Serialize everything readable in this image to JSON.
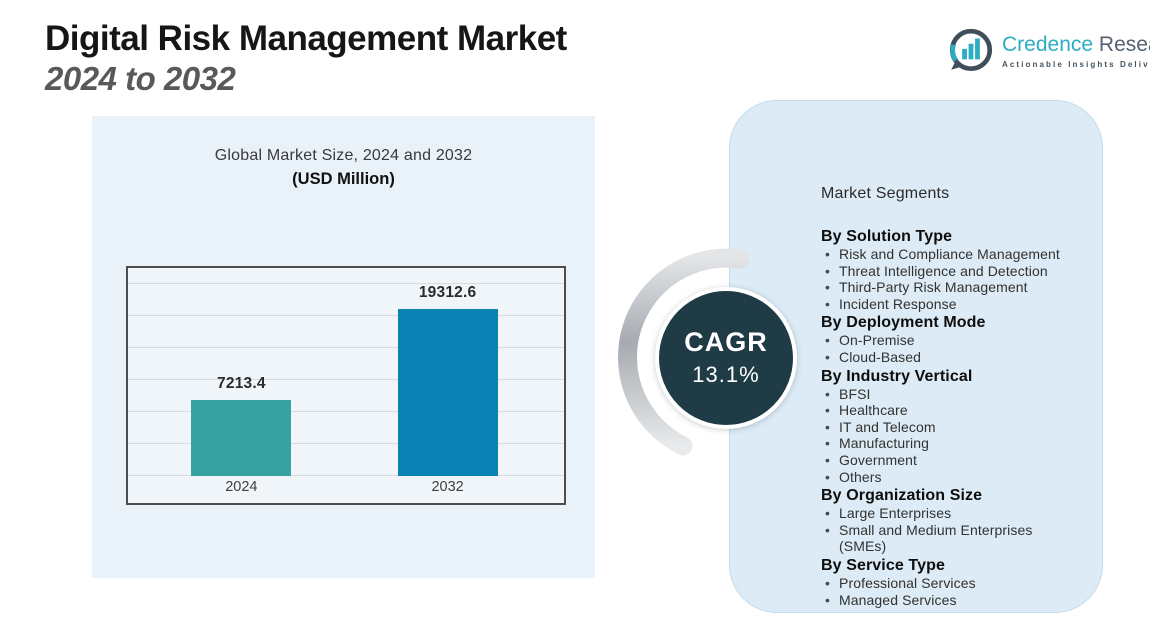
{
  "page": {
    "title_line1": "Digital Risk Management Market",
    "title_line2": "2024 to 2032"
  },
  "logo": {
    "brand_primary": "Credence",
    "brand_secondary": "Research",
    "tagline": "Actionable Insights Delivered",
    "icon": "bar-chart-circle-icon"
  },
  "chart_data": {
    "type": "bar",
    "title": "Global Market Size, 2024 and 2032",
    "subtitle": "(USD Million)",
    "categories": [
      "2024",
      "2032"
    ],
    "values": [
      7213.4,
      19312.6
    ],
    "labels": [
      "7213.4",
      "19312.6"
    ],
    "series": [
      {
        "name": "Global Market Size (USD Million)",
        "values": [
          7213.4,
          19312.6
        ]
      }
    ],
    "bar_colors": [
      "#36a2a1",
      "#0c82b4"
    ],
    "ylim": [
      -2900,
      22600
    ],
    "gridline_count": 7,
    "grid": true,
    "legend": false,
    "xlabel": "",
    "ylabel": ""
  },
  "cagr": {
    "label": "CAGR",
    "value": "13.1%",
    "circle_color": "#1f3b46"
  },
  "segments": {
    "heading": "Market Segments",
    "groups": [
      {
        "title": "By Solution Type",
        "items": [
          "Risk and Compliance Management",
          "Threat Intelligence and Detection",
          "Third-Party Risk Management",
          "Incident Response"
        ]
      },
      {
        "title": "By Deployment Mode",
        "items": [
          "On-Premise",
          "Cloud-Based"
        ]
      },
      {
        "title": "By Industry Vertical",
        "items": [
          "BFSI",
          "Healthcare",
          "IT and Telecom",
          "Manufacturing",
          "Government",
          "Others"
        ]
      },
      {
        "title": "By Organization Size",
        "items": [
          "Large Enterprises",
          "Small and Medium Enterprises (SMEs)"
        ]
      },
      {
        "title": "By Service Type",
        "items": [
          "Professional Services",
          "Managed Services"
        ]
      }
    ]
  },
  "colors": {
    "panel_left_bg": "#e9f1f9",
    "panel_right_bg": "#dcebf5",
    "plot_bg": "#f0f5fa",
    "bar_2024": "#36a2a1",
    "bar_2032": "#0c82b4",
    "cagr_circle": "#1f3b46",
    "logo_teal": "#2cadc4",
    "logo_slate": "#55626f"
  }
}
